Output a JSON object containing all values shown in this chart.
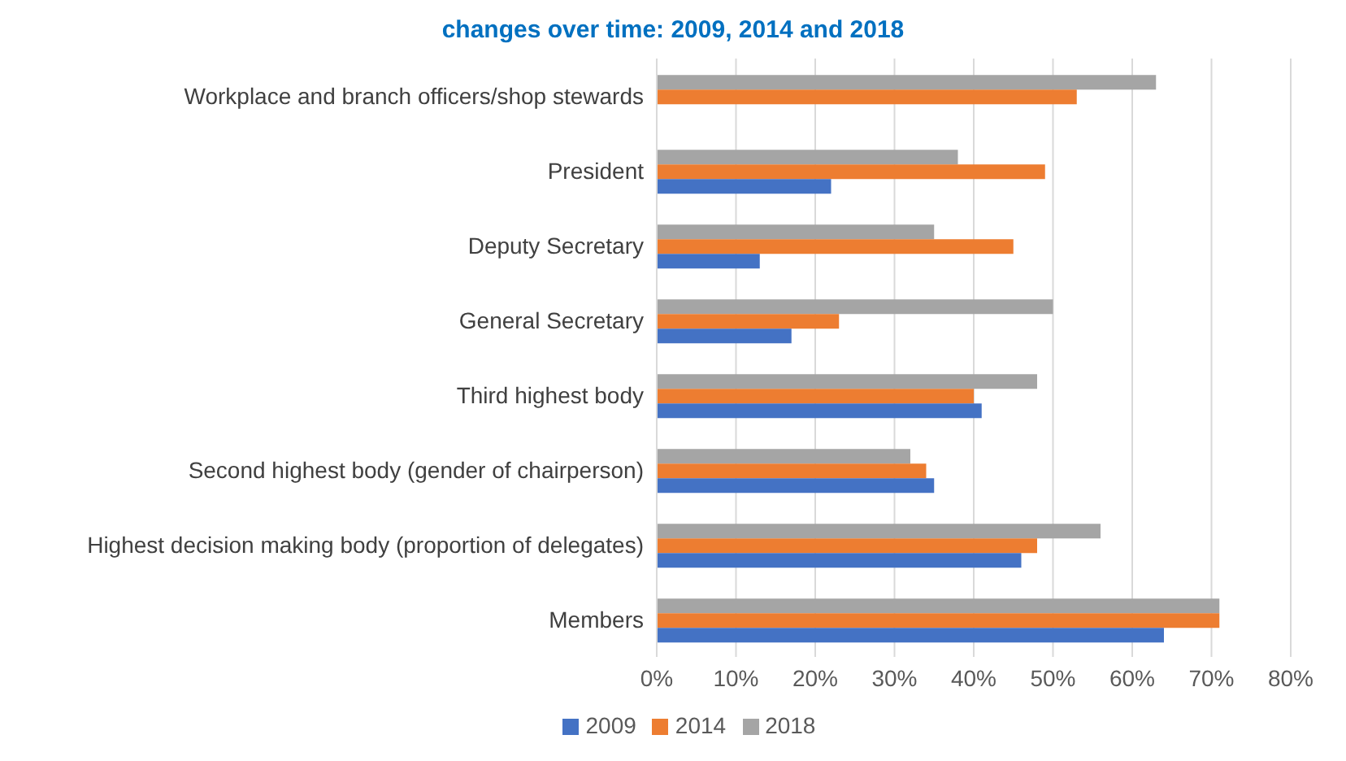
{
  "chart_data": {
    "type": "bar",
    "orientation": "horizontal",
    "title": "changes over time: 2009, 2014 and 2018",
    "categories": [
      "Workplace and branch officers/shop stewards",
      "President",
      "Deputy Secretary",
      "General Secretary",
      "Third highest body",
      "Second highest body (gender of chairperson)",
      "Highest decision making body (proportion of delegates)",
      "Members"
    ],
    "series": [
      {
        "name": "2018",
        "color": "#a5a5a5",
        "values": [
          63,
          38,
          35,
          50,
          48,
          32,
          56,
          71
        ]
      },
      {
        "name": "2014",
        "color": "#ed7d31",
        "values": [
          53,
          49,
          45,
          23,
          40,
          34,
          48,
          71
        ]
      },
      {
        "name": "2009",
        "color": "#4472c4",
        "values": [
          null,
          22,
          13,
          17,
          41,
          35,
          46,
          64
        ]
      }
    ],
    "xlim": [
      0,
      80
    ],
    "xticks": [
      {
        "value": 0,
        "label": "0%"
      },
      {
        "value": 10,
        "label": "10%"
      },
      {
        "value": 20,
        "label": "20%"
      },
      {
        "value": 30,
        "label": "30%"
      },
      {
        "value": 40,
        "label": "40%"
      },
      {
        "value": 50,
        "label": "50%"
      },
      {
        "value": 60,
        "label": "60%"
      },
      {
        "value": 70,
        "label": "70%"
      },
      {
        "value": 80,
        "label": "80%"
      }
    ],
    "grid": "x",
    "legend": "bottom"
  }
}
